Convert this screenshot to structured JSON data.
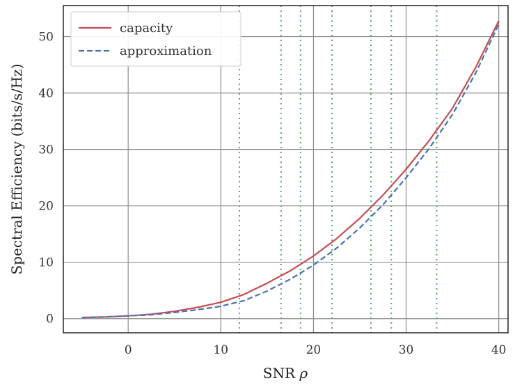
{
  "chart_data": {
    "type": "line",
    "xlabel_text": "SNR",
    "xlabel_symbol": "ρ",
    "ylabel": "Spectral Efficiency (bits/s/Hz)",
    "xlim": [
      -7,
      41
    ],
    "ylim": [
      -2.5,
      55.5
    ],
    "xticks": [
      0,
      10,
      20,
      30,
      40
    ],
    "yticks": [
      0,
      10,
      20,
      30,
      40,
      50
    ],
    "grid": true,
    "legend_position": "top-left",
    "vertical_markers": [
      12,
      16.5,
      18.6,
      22,
      26.2,
      28.4,
      33.3
    ],
    "colors": {
      "capacity": "#c44e52",
      "approximation": "#4c72b0",
      "markers": "#55a868",
      "grid": "#8c8c8c"
    },
    "series": [
      {
        "name": "capacity",
        "style": "solid",
        "x": [
          -5,
          -2.5,
          0,
          2.5,
          5,
          7.5,
          10,
          12.5,
          15,
          17.5,
          20,
          22.5,
          25,
          27.5,
          30,
          32.5,
          35,
          37.5,
          40
        ],
        "y": [
          0.2,
          0.3,
          0.5,
          0.8,
          1.3,
          2.0,
          2.9,
          4.3,
          6.3,
          8.5,
          11.1,
          14.2,
          17.8,
          21.9,
          26.5,
          31.6,
          37.3,
          44.5,
          52.8
        ]
      },
      {
        "name": "approximation",
        "style": "dashed",
        "x": [
          -5,
          -2.5,
          0,
          2.5,
          5,
          7.5,
          10,
          12.5,
          15,
          17.5,
          20,
          22.5,
          25,
          27.5,
          30,
          32.5,
          35,
          37.5,
          40
        ],
        "y": [
          0.2,
          0.3,
          0.5,
          0.7,
          1.1,
          1.6,
          2.2,
          3.2,
          4.9,
          7.0,
          9.5,
          12.5,
          16.1,
          20.2,
          25.0,
          30.2,
          36.2,
          43.5,
          52.2
        ]
      }
    ]
  }
}
